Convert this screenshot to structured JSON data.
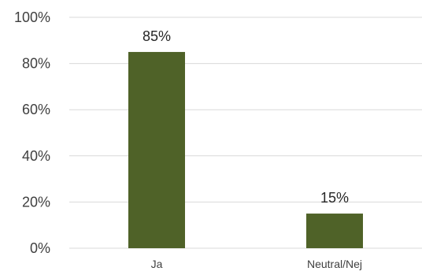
{
  "chart_data": {
    "type": "bar",
    "categories": [
      "Ja",
      "Neutral/Nej"
    ],
    "values": [
      85,
      15
    ],
    "data_labels": [
      "85%",
      "15%"
    ],
    "y_ticks": [
      {
        "value": 0,
        "label": "0%"
      },
      {
        "value": 20,
        "label": "20%"
      },
      {
        "value": 40,
        "label": "40%"
      },
      {
        "value": 60,
        "label": "60%"
      },
      {
        "value": 80,
        "label": "80%"
      },
      {
        "value": 100,
        "label": "100%"
      }
    ],
    "ylim": [
      0,
      100
    ],
    "title": "",
    "xlabel": "",
    "ylabel": "",
    "grid": true,
    "legend": "none",
    "colors": {
      "bar": "#4f6228",
      "grid": "#d9d9d9",
      "text": "#404040",
      "label": "#262626"
    }
  }
}
